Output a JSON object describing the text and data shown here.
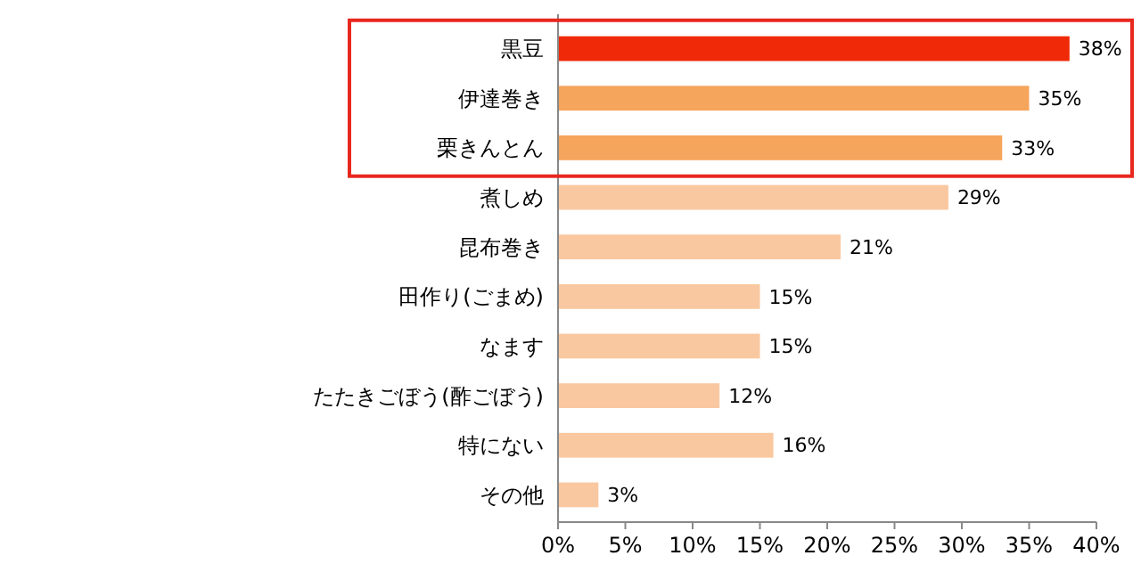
{
  "chart_data": {
    "type": "bar",
    "orientation": "horizontal",
    "categories": [
      "黒豆",
      "伊達巻き",
      "栗きんとん",
      "煮しめ",
      "昆布巻き",
      "田作り(ごまめ)",
      "なます",
      "たたきごぼう(酢ごぼう)",
      "特にない",
      "その他"
    ],
    "values": [
      38,
      35,
      33,
      29,
      21,
      15,
      15,
      12,
      16,
      3
    ],
    "colors": [
      "#f02a08",
      "#f5a55c",
      "#f5a55c",
      "#f9c8a0",
      "#f9c8a0",
      "#f9c8a0",
      "#f9c8a0",
      "#f9c8a0",
      "#f9c8a0",
      "#f9c8a0"
    ],
    "xlim": [
      0,
      40
    ],
    "xticks": [
      {
        "value": 0,
        "label": "0%"
      },
      {
        "value": 5,
        "label": "5%"
      },
      {
        "value": 10,
        "label": "10%"
      },
      {
        "value": 15,
        "label": "15%"
      },
      {
        "value": 20,
        "label": "20%"
      },
      {
        "value": 25,
        "label": "25%"
      },
      {
        "value": 30,
        "label": "30%"
      },
      {
        "value": 35,
        "label": "35%"
      },
      {
        "value": 40,
        "label": "40%"
      }
    ],
    "value_labels": [
      "38%",
      "35%",
      "33%",
      "29%",
      "21%",
      "15%",
      "15%",
      "12%",
      "16%",
      "3%"
    ],
    "grid": false
  }
}
